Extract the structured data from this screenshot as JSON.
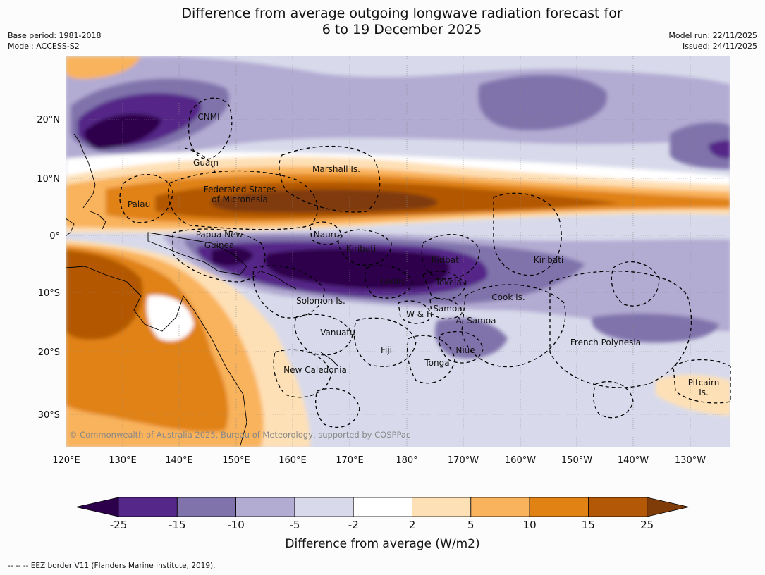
{
  "header": {
    "title_line1": "Difference from average outgoing longwave radiation forecast for",
    "title_line2": "6 to 19 December 2025",
    "base_period": "Base period: 1981-2018",
    "model": "Model: ACCESS-S2",
    "model_run": "Model run: 22/11/2025",
    "issued": "Issued: 24/11/2025"
  },
  "map": {
    "lon_ticks": [
      "120°E",
      "130°E",
      "140°E",
      "150°E",
      "160°E",
      "170°E",
      "180°",
      "170°W",
      "160°W",
      "150°W",
      "140°W",
      "130°W"
    ],
    "lat_ticks": [
      "20°N",
      "10°N",
      "0°",
      "10°S",
      "20°S",
      "30°S"
    ],
    "regions": {
      "cnmi": "CNMI",
      "guam": "Guam",
      "marshall": "Marshall Is.",
      "fsm_line1": "Federated States",
      "fsm_line2": "of Micronesia",
      "palau": "Palau",
      "png_line1": "Papua New",
      "png_line2": "Guinea",
      "nauru": "Nauru",
      "kiribati_w": "Kiribati",
      "kiribati_c": "Kiribati",
      "kiribati_e": "Kiribati",
      "tuvalu": "Tuvalu",
      "tokelau": "Tokelau",
      "solomon": "Solomon Is.",
      "samoa": "Samoa",
      "wf": "W & F",
      "asamoa": "A. Samoa",
      "cook": "Cook Is.",
      "vanuatu": "Vanuatu",
      "fiji": "Fiji",
      "niue": "Niue",
      "tonga": "Tonga",
      "fp": "French Polynesia",
      "newcal": "New Caledonia",
      "pitcairn_line1": "Pitcairn",
      "pitcairn_line2": "Is."
    },
    "copyright": "© Commonwealth of Australia 2025, Bureau of Meteorology, supported by COSPPac"
  },
  "legend": {
    "title": "Difference from average (W/m2)",
    "bins": [
      {
        "label": "-25",
        "color": "#2d004b"
      },
      {
        "label": "-15",
        "color": "#542788"
      },
      {
        "label": "-10",
        "color": "#8073ac"
      },
      {
        "label": "-5",
        "color": "#b2abd2"
      },
      {
        "label": "-2",
        "color": "#d8daeb"
      },
      {
        "label": "2",
        "color": "#ffffff"
      },
      {
        "label": "5",
        "color": "#fee0b6"
      },
      {
        "label": "10",
        "color": "#f9b35c"
      },
      {
        "label": "15",
        "color": "#e08214"
      },
      {
        "label": "25",
        "color": "#b35806"
      },
      {
        "label": "",
        "color": "#7f3b08"
      }
    ]
  },
  "footnote": "--  --  -- EEZ border V11 (Flanders Marine Institute, 2019)."
}
